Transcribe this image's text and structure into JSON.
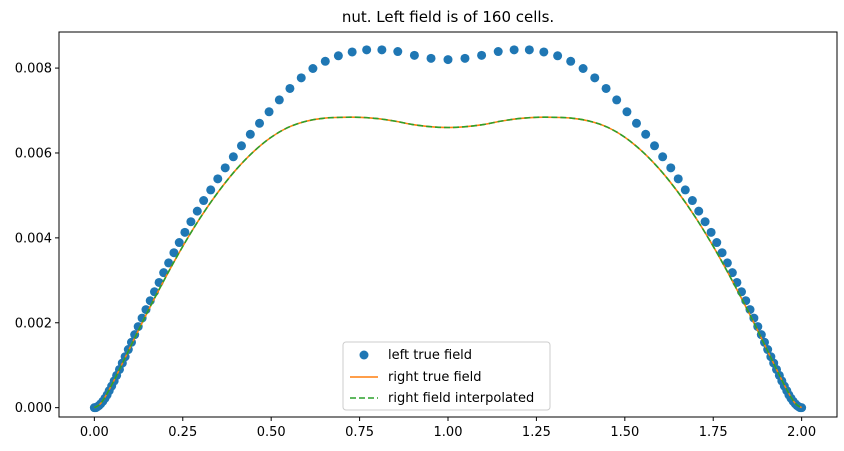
{
  "chart_data": {
    "type": "line",
    "title": "nut. Left field is of 160 cells.",
    "xlabel": "",
    "ylabel": "",
    "xlim": [
      -0.1,
      2.1
    ],
    "ylim": [
      -0.00022,
      0.00885
    ],
    "x_ticks": [
      0.0,
      0.25,
      0.5,
      0.75,
      1.0,
      1.25,
      1.5,
      1.75,
      2.0
    ],
    "x_tick_labels": [
      "0.00",
      "0.25",
      "0.50",
      "0.75",
      "1.00",
      "1.25",
      "1.50",
      "1.75",
      "2.00"
    ],
    "y_ticks": [
      0.0,
      0.002,
      0.004,
      0.006,
      0.008
    ],
    "y_tick_labels": [
      "0.000",
      "0.002",
      "0.004",
      "0.006",
      "0.008"
    ],
    "grid": false,
    "legend_position": "bottom-center",
    "series": [
      {
        "name": "left true field",
        "style": "markers",
        "color": "#1f77b4",
        "points": [
          [
            0.0,
            0.0
          ],
          [
            0.004,
            0.0
          ],
          [
            0.008,
            2e-05
          ],
          [
            0.013,
            5e-05
          ],
          [
            0.018,
            9e-05
          ],
          [
            0.024,
            0.00015
          ],
          [
            0.03,
            0.00022
          ],
          [
            0.036,
            0.0003
          ],
          [
            0.042,
            0.0004
          ],
          [
            0.049,
            0.00051
          ],
          [
            0.056,
            0.00063
          ],
          [
            0.063,
            0.00076
          ],
          [
            0.071,
            0.0009
          ],
          [
            0.079,
            0.00105
          ],
          [
            0.087,
            0.0012
          ],
          [
            0.096,
            0.00137
          ],
          [
            0.105,
            0.00154
          ],
          [
            0.114,
            0.00172
          ],
          [
            0.124,
            0.00191
          ],
          [
            0.135,
            0.00211
          ],
          [
            0.146,
            0.00231
          ],
          [
            0.158,
            0.00252
          ],
          [
            0.17,
            0.00273
          ],
          [
            0.183,
            0.00295
          ],
          [
            0.196,
            0.00318
          ],
          [
            0.21,
            0.00341
          ],
          [
            0.225,
            0.00365
          ],
          [
            0.24,
            0.00389
          ],
          [
            0.256,
            0.00413
          ],
          [
            0.273,
            0.00438
          ],
          [
            0.291,
            0.00463
          ],
          [
            0.309,
            0.00488
          ],
          [
            0.329,
            0.00513
          ],
          [
            0.349,
            0.00539
          ],
          [
            0.37,
            0.00565
          ],
          [
            0.393,
            0.00591
          ],
          [
            0.416,
            0.00617
          ],
          [
            0.441,
            0.00644
          ],
          [
            0.467,
            0.0067
          ],
          [
            0.494,
            0.00697
          ],
          [
            0.523,
            0.00725
          ],
          [
            0.553,
            0.00752
          ],
          [
            0.585,
            0.00777
          ],
          [
            0.618,
            0.00799
          ],
          [
            0.653,
            0.00816
          ],
          [
            0.69,
            0.00829
          ],
          [
            0.729,
            0.00838
          ],
          [
            0.77,
            0.00843
          ],
          [
            0.813,
            0.00843
          ],
          [
            0.858,
            0.00839
          ],
          [
            0.905,
            0.0083
          ],
          [
            0.952,
            0.00823
          ],
          [
            1.0,
            0.0082
          ],
          [
            1.048,
            0.00823
          ],
          [
            1.095,
            0.0083
          ],
          [
            1.142,
            0.00839
          ],
          [
            1.187,
            0.00843
          ],
          [
            1.23,
            0.00843
          ],
          [
            1.271,
            0.00838
          ],
          [
            1.31,
            0.00829
          ],
          [
            1.347,
            0.00816
          ],
          [
            1.382,
            0.00799
          ],
          [
            1.415,
            0.00777
          ],
          [
            1.447,
            0.00752
          ],
          [
            1.477,
            0.00725
          ],
          [
            1.506,
            0.00697
          ],
          [
            1.533,
            0.0067
          ],
          [
            1.559,
            0.00644
          ],
          [
            1.584,
            0.00617
          ],
          [
            1.607,
            0.00591
          ],
          [
            1.63,
            0.00565
          ],
          [
            1.651,
            0.00539
          ],
          [
            1.671,
            0.00513
          ],
          [
            1.691,
            0.00488
          ],
          [
            1.709,
            0.00463
          ],
          [
            1.727,
            0.00438
          ],
          [
            1.744,
            0.00413
          ],
          [
            1.76,
            0.00389
          ],
          [
            1.775,
            0.00365
          ],
          [
            1.79,
            0.00341
          ],
          [
            1.804,
            0.00318
          ],
          [
            1.817,
            0.00295
          ],
          [
            1.83,
            0.00273
          ],
          [
            1.842,
            0.00252
          ],
          [
            1.854,
            0.00231
          ],
          [
            1.865,
            0.00211
          ],
          [
            1.876,
            0.00191
          ],
          [
            1.886,
            0.00172
          ],
          [
            1.895,
            0.00154
          ],
          [
            1.904,
            0.00137
          ],
          [
            1.913,
            0.0012
          ],
          [
            1.921,
            0.00105
          ],
          [
            1.929,
            0.0009
          ],
          [
            1.937,
            0.00076
          ],
          [
            1.944,
            0.00063
          ],
          [
            1.951,
            0.00051
          ],
          [
            1.958,
            0.0004
          ],
          [
            1.964,
            0.0003
          ],
          [
            1.97,
            0.00022
          ],
          [
            1.976,
            0.00015
          ],
          [
            1.982,
            9e-05
          ],
          [
            1.987,
            5e-05
          ],
          [
            1.992,
            2e-05
          ],
          [
            1.996,
            0.0
          ],
          [
            2.0,
            0.0
          ]
        ]
      },
      {
        "name": "right true field",
        "style": "solid",
        "color": "#ff7f0e",
        "points": [
          [
            0.0,
            0.0
          ],
          [
            0.02,
            0.00012
          ],
          [
            0.05,
            0.00055
          ],
          [
            0.1,
            0.0014
          ],
          [
            0.15,
            0.00225
          ],
          [
            0.2,
            0.00305
          ],
          [
            0.25,
            0.0038
          ],
          [
            0.3,
            0.00448
          ],
          [
            0.35,
            0.00508
          ],
          [
            0.4,
            0.0056
          ],
          [
            0.45,
            0.00603
          ],
          [
            0.5,
            0.00637
          ],
          [
            0.55,
            0.00661
          ],
          [
            0.6,
            0.00675
          ],
          [
            0.65,
            0.00682
          ],
          [
            0.7,
            0.00684
          ],
          [
            0.75,
            0.00684
          ],
          [
            0.8,
            0.00681
          ],
          [
            0.85,
            0.00675
          ],
          [
            0.9,
            0.00667
          ],
          [
            0.95,
            0.00662
          ],
          [
            1.0,
            0.0066
          ],
          [
            1.05,
            0.00662
          ],
          [
            1.1,
            0.00667
          ],
          [
            1.15,
            0.00675
          ],
          [
            1.2,
            0.00681
          ],
          [
            1.25,
            0.00684
          ],
          [
            1.3,
            0.00684
          ],
          [
            1.35,
            0.00682
          ],
          [
            1.4,
            0.00675
          ],
          [
            1.45,
            0.00661
          ],
          [
            1.5,
            0.00637
          ],
          [
            1.55,
            0.00603
          ],
          [
            1.6,
            0.0056
          ],
          [
            1.65,
            0.00508
          ],
          [
            1.7,
            0.00448
          ],
          [
            1.75,
            0.0038
          ],
          [
            1.8,
            0.00305
          ],
          [
            1.85,
            0.00225
          ],
          [
            1.9,
            0.0014
          ],
          [
            1.95,
            0.00055
          ],
          [
            1.98,
            0.00012
          ],
          [
            2.0,
            0.0
          ]
        ]
      },
      {
        "name": "right field interpolated",
        "style": "dashed",
        "color": "#2ca02c",
        "points": [
          [
            0.0,
            0.0
          ],
          [
            0.02,
            0.00012
          ],
          [
            0.05,
            0.00055
          ],
          [
            0.1,
            0.0014
          ],
          [
            0.15,
            0.00225
          ],
          [
            0.2,
            0.00305
          ],
          [
            0.25,
            0.0038
          ],
          [
            0.3,
            0.00448
          ],
          [
            0.35,
            0.00508
          ],
          [
            0.4,
            0.0056
          ],
          [
            0.45,
            0.00603
          ],
          [
            0.5,
            0.00637
          ],
          [
            0.55,
            0.00661
          ],
          [
            0.6,
            0.00675
          ],
          [
            0.65,
            0.00682
          ],
          [
            0.7,
            0.00684
          ],
          [
            0.75,
            0.00684
          ],
          [
            0.8,
            0.00681
          ],
          [
            0.85,
            0.00675
          ],
          [
            0.9,
            0.00667
          ],
          [
            0.95,
            0.00662
          ],
          [
            1.0,
            0.0066
          ],
          [
            1.05,
            0.00662
          ],
          [
            1.1,
            0.00667
          ],
          [
            1.15,
            0.00675
          ],
          [
            1.2,
            0.00681
          ],
          [
            1.25,
            0.00684
          ],
          [
            1.3,
            0.00684
          ],
          [
            1.35,
            0.00682
          ],
          [
            1.4,
            0.00675
          ],
          [
            1.45,
            0.00661
          ],
          [
            1.5,
            0.00637
          ],
          [
            1.55,
            0.00603
          ],
          [
            1.6,
            0.0056
          ],
          [
            1.65,
            0.00508
          ],
          [
            1.7,
            0.00448
          ],
          [
            1.75,
            0.0038
          ],
          [
            1.8,
            0.00305
          ],
          [
            1.85,
            0.00225
          ],
          [
            1.9,
            0.0014
          ],
          [
            1.95,
            0.00055
          ],
          [
            1.98,
            0.00012
          ],
          [
            2.0,
            0.0
          ]
        ]
      }
    ]
  }
}
